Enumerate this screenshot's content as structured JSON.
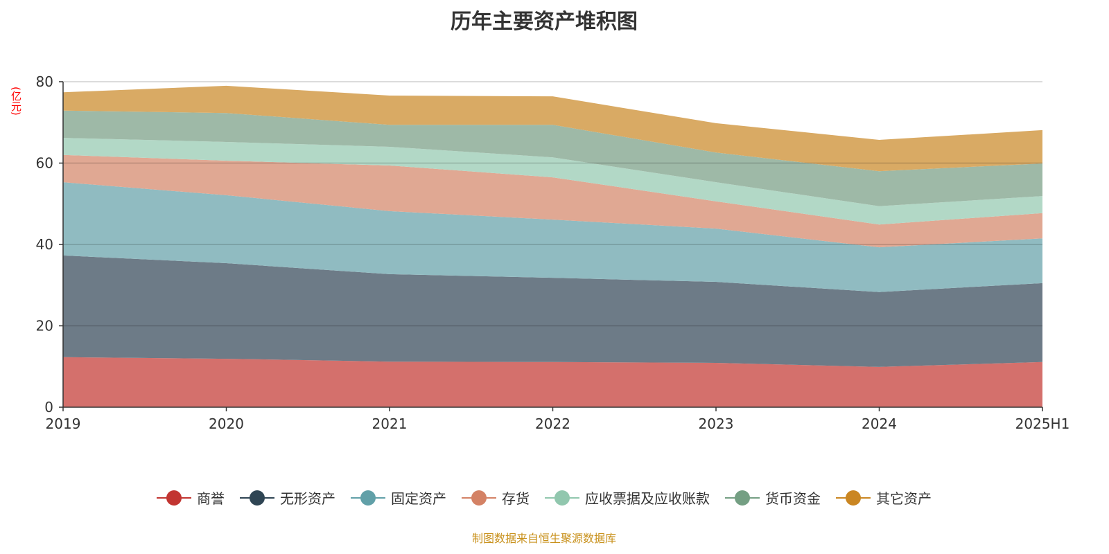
{
  "chart_data": {
    "type": "area",
    "stacked": true,
    "title": "历年主要资产堆积图",
    "ylabel": "(亿元)",
    "xlabel": "",
    "categories": [
      "2019",
      "2020",
      "2021",
      "2022",
      "2023",
      "2024",
      "2025H1"
    ],
    "ylim": [
      0,
      80
    ],
    "yticks": [
      "0",
      "20",
      "40",
      "60",
      "80"
    ],
    "grid": true,
    "legend_position": "bottom",
    "series": [
      {
        "name": "商誉",
        "color": "#c23531",
        "fill": "#d4706c",
        "values": [
          12.3,
          11.9,
          11.2,
          11.1,
          10.9,
          9.9,
          11.1
        ]
      },
      {
        "name": "无形资产",
        "color": "#2f4554",
        "fill": "#6d7b87",
        "values": [
          25.0,
          23.5,
          21.5,
          20.7,
          19.9,
          18.4,
          19.4
        ]
      },
      {
        "name": "固定资产",
        "color": "#61a0a8",
        "fill": "#90bbc1",
        "values": [
          18.0,
          16.7,
          15.5,
          14.3,
          13.1,
          11.0,
          11.0
        ]
      },
      {
        "name": "存货",
        "color": "#d48265",
        "fill": "#e0a893",
        "values": [
          6.7,
          8.5,
          11.2,
          10.4,
          6.7,
          5.6,
          6.2
        ]
      },
      {
        "name": "应收票据及应收账款",
        "color": "#91c7ae",
        "fill": "#b2d8c6",
        "values": [
          4.2,
          4.6,
          4.6,
          4.9,
          4.7,
          4.5,
          4.2
        ]
      },
      {
        "name": "货币资金",
        "color": "#749f83",
        "fill": "#9eb9a7",
        "values": [
          6.7,
          7.1,
          5.4,
          8.0,
          7.3,
          8.6,
          8.0
        ]
      },
      {
        "name": "其它资产",
        "color": "#ca8622",
        "fill": "#d9aa64",
        "values": [
          4.5,
          6.7,
          7.2,
          7.0,
          7.2,
          7.7,
          8.2
        ]
      }
    ]
  },
  "source": "制图数据来自恒生聚源数据库"
}
